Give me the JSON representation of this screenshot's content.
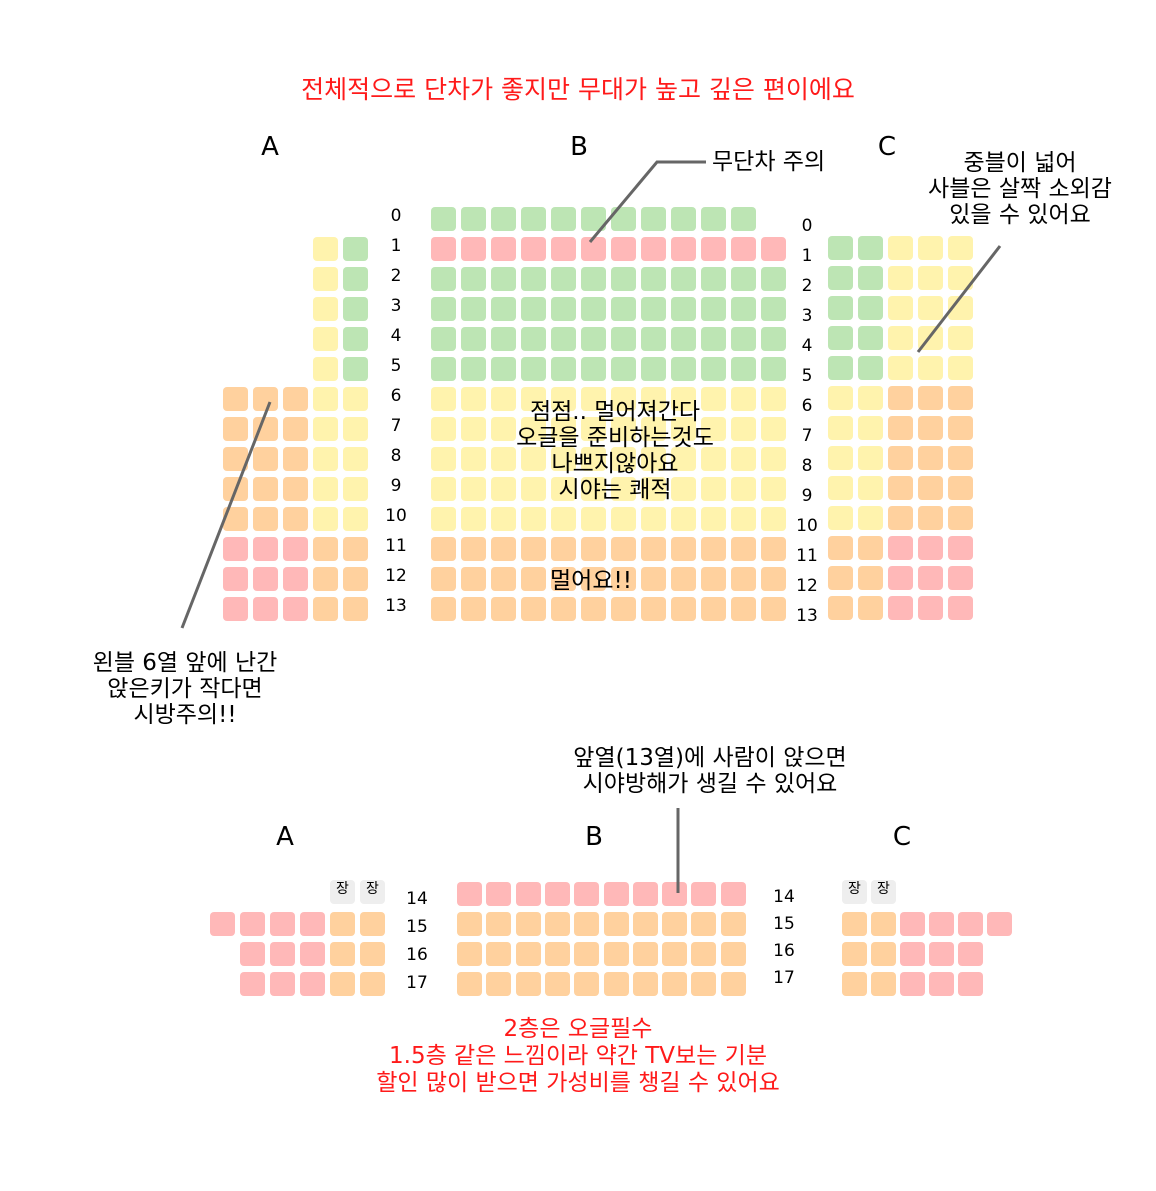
{
  "title": "전체적으로 단차가 좋지만 무대가 높고 깊은 편이에요",
  "colors": {
    "green": "#bde5b4",
    "yellow": "#fff3ad",
    "orange": "#ffd19e",
    "red": "#ffb8b8",
    "placeholder": "#eeeeee",
    "annotation_red": "#ff1a1a",
    "pointer_line": "#666666"
  },
  "floor1": {
    "section_labels": [
      "A",
      "B",
      "C"
    ],
    "rows_left": [
      "0",
      "1",
      "2",
      "3",
      "4",
      "5",
      "6",
      "7",
      "8",
      "9",
      "10",
      "11",
      "12",
      "13"
    ],
    "rows_right": [
      "0",
      "1",
      "2",
      "3",
      "4",
      "5",
      "6",
      "7",
      "8",
      "9",
      "10",
      "11",
      "12",
      "13"
    ],
    "notes": {
      "no_step": "무단차 주의",
      "wide_aisle": [
        "중블이 넓어",
        "사블은 살짝 소외감",
        "있을 수 있어요"
      ],
      "center": [
        "점점.. 멀어져간다",
        "오글을 준비하는것도",
        "나쁘지않아요",
        "시야는 쾌적"
      ],
      "far": "멀어요!!",
      "left_block": [
        "왼블 6열 앞에 난간",
        "앉은키가 작다면",
        "시방주의!!"
      ]
    }
  },
  "floor2": {
    "section_labels": [
      "A",
      "B",
      "C"
    ],
    "rows_left": [
      "14",
      "15",
      "16",
      "17"
    ],
    "rows_right": [
      "14",
      "15",
      "16",
      "17"
    ],
    "seat_placeholder": "장",
    "note_front": [
      "앞열(13열)에 사람이 앉으면",
      "시야방해가 생길 수 있어요"
    ],
    "summary": [
      "2층은 오글필수",
      "1.5층 같은 느낌이라 약간 TV보는 기분",
      "할인 많이 받으면 가성비를 챙길 수 있어요"
    ]
  },
  "seat_color_map": {
    "A": {
      "rows_0_5": [
        "yellow",
        "green"
      ],
      "row_6": [
        "orange",
        "orange",
        "orange",
        "yellow",
        "yellow"
      ],
      "rows_7_10": [
        "orange",
        "orange",
        "orange",
        "yellow",
        "yellow"
      ],
      "rows_11_13": [
        "red",
        "red",
        "red",
        "orange",
        "orange"
      ]
    },
    "B": {
      "row_0": "green",
      "row_1": "red",
      "rows_2_5": "green",
      "rows_6_10": "yellow",
      "rows_11_13": "orange"
    },
    "C": {
      "rows_0_4": [
        "green",
        "green",
        "yellow",
        "yellow",
        "yellow"
      ],
      "rows_5_9": [
        "yellow",
        "yellow",
        "orange",
        "orange",
        "orange"
      ],
      "rows_10_13": [
        "orange",
        "orange",
        "red",
        "red",
        "red"
      ]
    },
    "floor2_A": [
      "red",
      "red",
      "red",
      "red",
      "orange",
      "orange"
    ],
    "floor2_B": {
      "row_14": "red",
      "rows_15_17": "orange"
    },
    "floor2_C": [
      "orange",
      "orange",
      "red",
      "red",
      "red",
      "red"
    ]
  }
}
